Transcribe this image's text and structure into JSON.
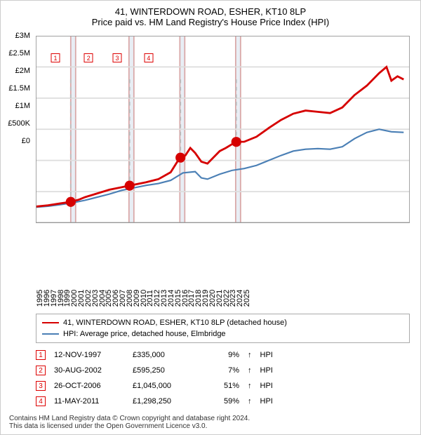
{
  "title_line1": "41, WINTERDOWN ROAD, ESHER, KT10 8LP",
  "title_line2": "Price paid vs. HM Land Registry's House Price Index (HPI)",
  "chart": {
    "type": "line",
    "x_min": 1995,
    "x_max": 2025.5,
    "y_min": 0,
    "y_max": 3000000,
    "y_ticks": [
      0,
      500000,
      1000000,
      1500000,
      2000000,
      2500000,
      3000000
    ],
    "y_tick_labels": [
      "£0",
      "£500K",
      "£1M",
      "£1.5M",
      "£2M",
      "£2.5M",
      "£3M"
    ],
    "x_ticks": [
      1995,
      1996,
      1997,
      1998,
      1999,
      2000,
      2001,
      2002,
      2003,
      2004,
      2005,
      2006,
      2007,
      2008,
      2009,
      2010,
      2011,
      2012,
      2013,
      2014,
      2015,
      2016,
      2017,
      2018,
      2019,
      2020,
      2021,
      2022,
      2023,
      2024,
      2025
    ],
    "background_color": "#ffffff",
    "shaded_bands": [
      {
        "from": 1997.85,
        "to": 1998.25,
        "color": "#e8eef5"
      },
      {
        "from": 2002.6,
        "to": 2003.0,
        "color": "#e8eef5"
      },
      {
        "from": 2006.75,
        "to": 2007.15,
        "color": "#e8eef5"
      },
      {
        "from": 2011.3,
        "to": 2011.7,
        "color": "#e8eef5"
      }
    ],
    "grid_v_dashed_color": "#cccccc",
    "band_border_color": "#d9a8a8",
    "series_red": {
      "color": "#d60000",
      "width": 1.6,
      "points": [
        [
          1995,
          260000
        ],
        [
          1996,
          280000
        ],
        [
          1997,
          310000
        ],
        [
          1997.85,
          335000
        ],
        [
          1998.5,
          370000
        ],
        [
          1999,
          410000
        ],
        [
          2000,
          470000
        ],
        [
          2001,
          530000
        ],
        [
          2002,
          570000
        ],
        [
          2002.6,
          595250
        ],
        [
          2003,
          610000
        ],
        [
          2004,
          650000
        ],
        [
          2005,
          700000
        ],
        [
          2006,
          810000
        ],
        [
          2006.75,
          1045000
        ],
        [
          2007.2,
          1080000
        ],
        [
          2007.6,
          1200000
        ],
        [
          2008,
          1120000
        ],
        [
          2008.5,
          980000
        ],
        [
          2009,
          950000
        ],
        [
          2009.5,
          1050000
        ],
        [
          2010,
          1150000
        ],
        [
          2010.5,
          1200000
        ],
        [
          2011,
          1260000
        ],
        [
          2011.3,
          1298250
        ],
        [
          2012,
          1300000
        ],
        [
          2013,
          1380000
        ],
        [
          2014,
          1520000
        ],
        [
          2015,
          1650000
        ],
        [
          2016,
          1750000
        ],
        [
          2017,
          1800000
        ],
        [
          2018,
          1780000
        ],
        [
          2019,
          1760000
        ],
        [
          2020,
          1850000
        ],
        [
          2021,
          2050000
        ],
        [
          2022,
          2200000
        ],
        [
          2023,
          2400000
        ],
        [
          2023.6,
          2500000
        ],
        [
          2024,
          2280000
        ],
        [
          2024.5,
          2350000
        ],
        [
          2025,
          2300000
        ]
      ]
    },
    "series_blue": {
      "color": "#4a7fb5",
      "width": 1.2,
      "points": [
        [
          1995,
          250000
        ],
        [
          1996,
          265000
        ],
        [
          1997,
          290000
        ],
        [
          1998,
          320000
        ],
        [
          1999,
          360000
        ],
        [
          2000,
          410000
        ],
        [
          2001,
          460000
        ],
        [
          2002,
          520000
        ],
        [
          2003,
          560000
        ],
        [
          2004,
          600000
        ],
        [
          2005,
          630000
        ],
        [
          2006,
          680000
        ],
        [
          2007,
          800000
        ],
        [
          2008,
          820000
        ],
        [
          2008.5,
          720000
        ],
        [
          2009,
          700000
        ],
        [
          2010,
          780000
        ],
        [
          2011,
          840000
        ],
        [
          2012,
          870000
        ],
        [
          2013,
          920000
        ],
        [
          2014,
          1000000
        ],
        [
          2015,
          1080000
        ],
        [
          2016,
          1150000
        ],
        [
          2017,
          1180000
        ],
        [
          2018,
          1190000
        ],
        [
          2019,
          1180000
        ],
        [
          2020,
          1220000
        ],
        [
          2021,
          1350000
        ],
        [
          2022,
          1450000
        ],
        [
          2023,
          1500000
        ],
        [
          2024,
          1460000
        ],
        [
          2025,
          1450000
        ]
      ]
    },
    "sale_markers": [
      {
        "n": "1",
        "x": 1997.85,
        "y": 335000,
        "label_y": 2500000
      },
      {
        "n": "2",
        "x": 2002.65,
        "y": 595250,
        "label_y": 2500000
      },
      {
        "n": "3",
        "x": 2006.8,
        "y": 1045000,
        "label_y": 2500000
      },
      {
        "n": "4",
        "x": 2011.35,
        "y": 1298250,
        "label_y": 2500000
      }
    ]
  },
  "legend": {
    "items": [
      {
        "color": "#d60000",
        "label": "41, WINTERDOWN ROAD, ESHER, KT10 8LP (detached house)"
      },
      {
        "color": "#4a7fb5",
        "label": "HPI: Average price, detached house, Elmbridge"
      }
    ]
  },
  "events": [
    {
      "n": "1",
      "date": "12-NOV-1997",
      "price": "£335,000",
      "pct": "9%",
      "arrow": "↑",
      "suffix": "HPI"
    },
    {
      "n": "2",
      "date": "30-AUG-2002",
      "price": "£595,250",
      "pct": "7%",
      "arrow": "↑",
      "suffix": "HPI"
    },
    {
      "n": "3",
      "date": "26-OCT-2006",
      "price": "£1,045,000",
      "pct": "51%",
      "arrow": "↑",
      "suffix": "HPI"
    },
    {
      "n": "4",
      "date": "11-MAY-2011",
      "price": "£1,298,250",
      "pct": "59%",
      "arrow": "↑",
      "suffix": "HPI"
    }
  ],
  "footer_line1": "Contains HM Land Registry data © Crown copyright and database right 2024.",
  "footer_line2": "This data is licensed under the Open Government Licence v3.0."
}
